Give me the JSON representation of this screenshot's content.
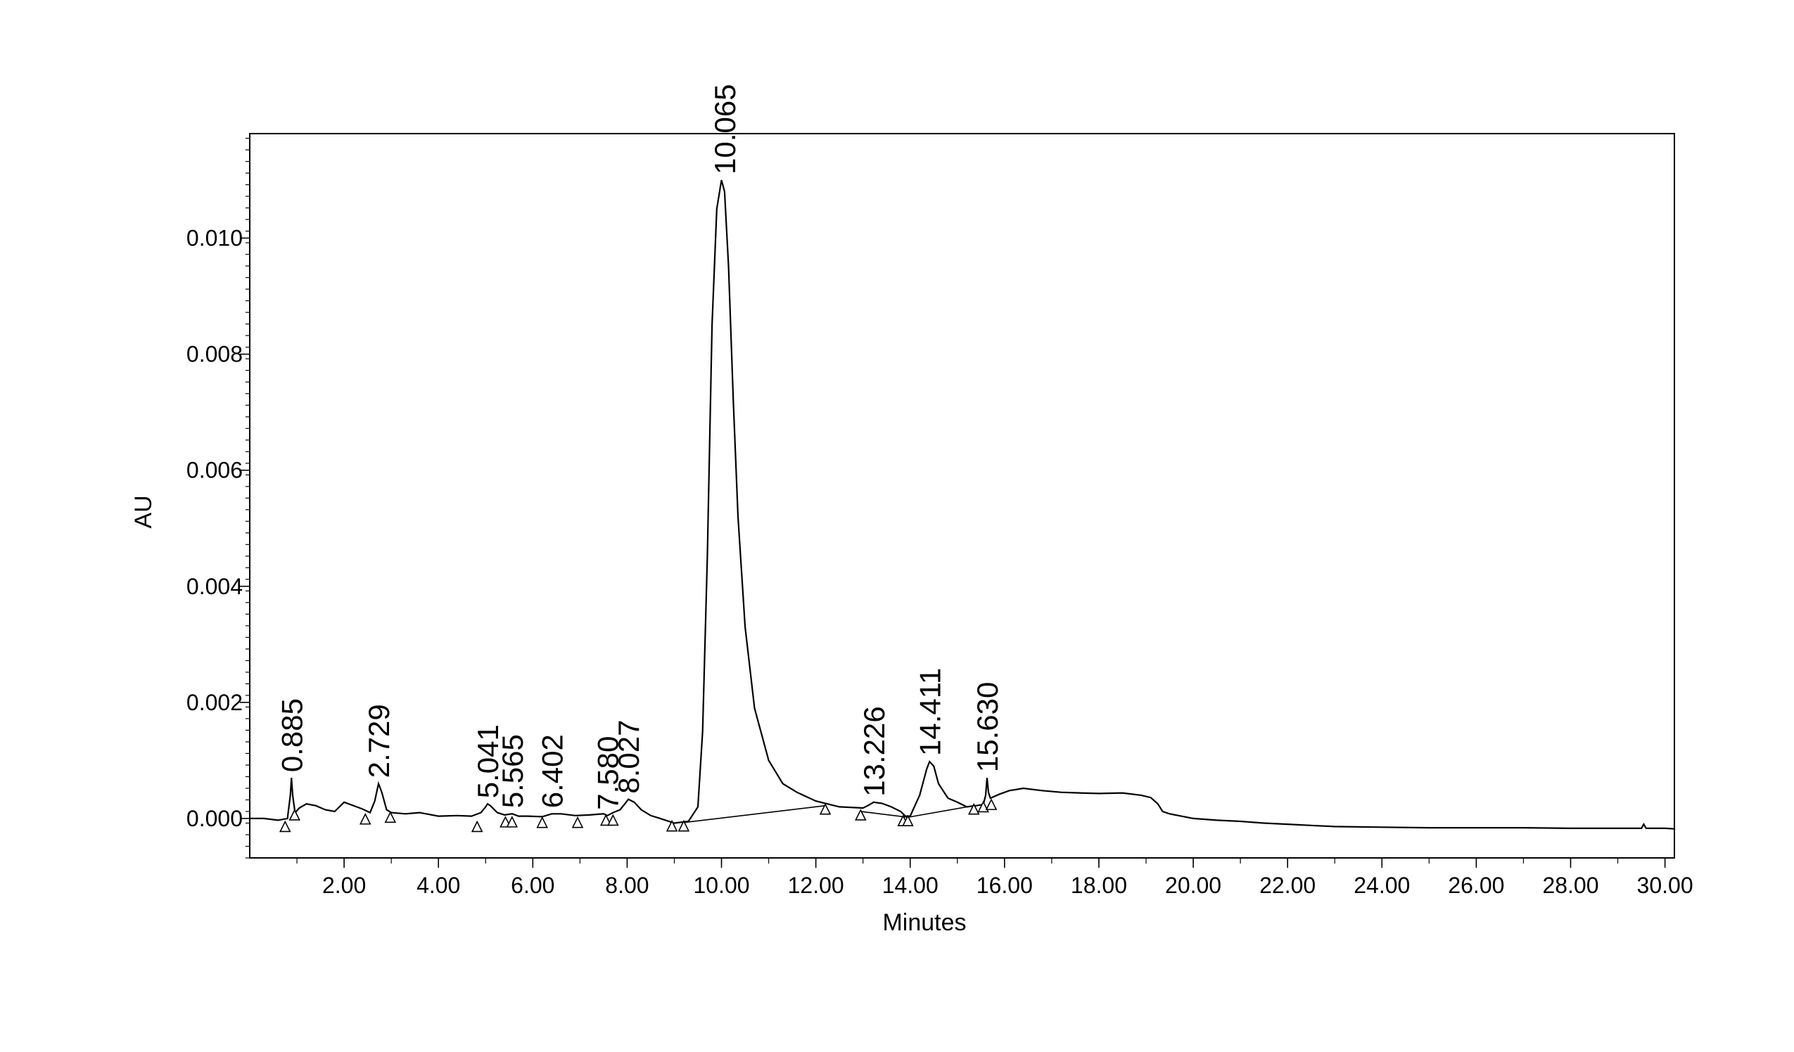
{
  "chart_data": {
    "type": "line",
    "xlabel": "Minutes",
    "ylabel": "AU",
    "xlim": [
      0.0,
      30.2
    ],
    "ylim": [
      -0.00068,
      0.0118
    ],
    "x_ticks": [
      2,
      4,
      6,
      8,
      10,
      12,
      14,
      16,
      18,
      20,
      22,
      24,
      26,
      28,
      30
    ],
    "x_tick_labels": [
      "2.00",
      "4.00",
      "6.00",
      "8.00",
      "10.00",
      "12.00",
      "14.00",
      "16.00",
      "18.00",
      "20.00",
      "22.00",
      "24.00",
      "26.00",
      "28.00",
      "30.00"
    ],
    "y_ticks": [
      0.0,
      0.002,
      0.004,
      0.006,
      0.008,
      0.01
    ],
    "y_tick_labels": [
      "0.000",
      "0.002",
      "0.004",
      "0.006",
      "0.008",
      "0.010"
    ],
    "series": [
      {
        "x": [
          0.0,
          0.3,
          0.6,
          0.8,
          0.86,
          0.885,
          0.91,
          0.96,
          1.05,
          1.2,
          1.4,
          1.6,
          1.8,
          2.0,
          2.2,
          2.4,
          2.55,
          2.65,
          2.729,
          2.8,
          2.9,
          3.0,
          3.3,
          3.6,
          4.0,
          4.4,
          4.7,
          4.9,
          5.0,
          5.041,
          5.1,
          5.25,
          5.4,
          5.565,
          5.7,
          5.9,
          6.2,
          6.402,
          6.6,
          6.9,
          7.2,
          7.5,
          7.58,
          7.7,
          7.85,
          7.95,
          8.027,
          8.15,
          8.3,
          8.5,
          8.7,
          9.0,
          9.3,
          9.5,
          9.6,
          9.7,
          9.8,
          9.9,
          10.0,
          10.065,
          10.15,
          10.25,
          10.35,
          10.5,
          10.7,
          11.0,
          11.3,
          11.6,
          12.0,
          12.5,
          13.0,
          13.1,
          13.226,
          13.4,
          13.6,
          13.8,
          13.9,
          14.0,
          14.2,
          14.35,
          14.411,
          14.5,
          14.6,
          14.8,
          15.0,
          15.2,
          15.4,
          15.55,
          15.6,
          15.63,
          15.66,
          15.7,
          15.9,
          16.1,
          16.4,
          16.8,
          17.2,
          17.6,
          18.0,
          18.5,
          18.9,
          19.1,
          19.25,
          19.35,
          19.5,
          20.0,
          20.5,
          21.0,
          21.5,
          22.0,
          22.5,
          23.0,
          24.0,
          25.0,
          26.0,
          27.0,
          28.0,
          29.0,
          29.5,
          29.55,
          29.6,
          30.0,
          30.2
        ],
        "y": [
          0.0,
          0.0,
          -3e-05,
          0.0,
          0.0004,
          0.0007,
          0.0004,
          0.0001,
          0.00018,
          0.00025,
          0.00022,
          0.00015,
          0.00012,
          0.00028,
          0.00022,
          0.00016,
          0.0001,
          0.0003,
          0.0006,
          0.00045,
          0.00015,
          0.0001,
          8e-05,
          0.0001,
          4e-05,
          5e-05,
          4e-05,
          0.0001,
          0.0002,
          0.00025,
          0.00022,
          0.0001,
          6e-05,
          8e-05,
          4e-05,
          4e-05,
          3e-05,
          8e-05,
          8e-05,
          5e-05,
          6e-05,
          8e-05,
          5e-05,
          0.0001,
          0.00015,
          0.00025,
          0.00033,
          0.00028,
          0.00015,
          5e-05,
          0.0,
          -8e-05,
          -5e-05,
          0.0002,
          0.0015,
          0.0045,
          0.0085,
          0.0105,
          0.011,
          0.0108,
          0.0095,
          0.0072,
          0.0052,
          0.0033,
          0.0019,
          0.001,
          0.0006,
          0.00045,
          0.0003,
          0.0002,
          0.00018,
          0.00022,
          0.00028,
          0.00026,
          0.0002,
          0.00012,
          4e-05,
          4e-05,
          0.0004,
          0.00085,
          0.00098,
          0.0009,
          0.0006,
          0.00035,
          0.00028,
          0.0002,
          0.00022,
          0.00024,
          0.0004,
          0.0007,
          0.00045,
          0.00035,
          0.00042,
          0.00048,
          0.00052,
          0.00048,
          0.00045,
          0.00044,
          0.00043,
          0.00044,
          0.0004,
          0.00036,
          0.00025,
          0.00012,
          8e-05,
          0.0,
          -3e-05,
          -5e-05,
          -8e-05,
          -0.0001,
          -0.00012,
          -0.00014,
          -0.00015,
          -0.00016,
          -0.00016,
          -0.00016,
          -0.00017,
          -0.00017,
          -0.00017,
          -0.0001,
          -0.00017,
          -0.00017,
          -0.00018
        ]
      }
    ],
    "peak_labels": [
      {
        "rt": 0.885,
        "text": "0.885",
        "y": 0.0007
      },
      {
        "rt": 2.729,
        "text": "2.729",
        "y": 0.0006
      },
      {
        "rt": 5.041,
        "text": "5.041",
        "y": 0.00025
      },
      {
        "rt": 5.565,
        "text": "5.565",
        "y": 8e-05
      },
      {
        "rt": 6.402,
        "text": "6.402",
        "y": 8e-05
      },
      {
        "rt": 7.58,
        "text": "7.580",
        "y": 5e-05
      },
      {
        "rt": 8.027,
        "text": "8.027",
        "y": 0.00033
      },
      {
        "rt": 10.065,
        "text": "10.065",
        "y": 0.011
      },
      {
        "rt": 13.226,
        "text": "13.226",
        "y": 0.00028
      },
      {
        "rt": 14.411,
        "text": "14.411",
        "y": 0.00098
      },
      {
        "rt": 15.63,
        "text": "15.630",
        "y": 0.0007
      }
    ],
    "integration_markers": [
      {
        "x": 0.75,
        "y": -8e-05
      },
      {
        "x": 0.95,
        "y": 0.00012
      },
      {
        "x": 2.45,
        "y": 5e-05
      },
      {
        "x": 2.98,
        "y": 8e-05
      },
      {
        "x": 4.82,
        "y": -8e-05
      },
      {
        "x": 5.42,
        "y": 0.0
      },
      {
        "x": 5.56,
        "y": 0.0
      },
      {
        "x": 6.2,
        "y": -1e-05
      },
      {
        "x": 6.95,
        "y": -1e-05
      },
      {
        "x": 7.55,
        "y": 3e-05
      },
      {
        "x": 7.7,
        "y": 3e-05
      },
      {
        "x": 8.95,
        "y": -7e-05
      },
      {
        "x": 9.2,
        "y": -7e-05
      },
      {
        "x": 12.2,
        "y": 0.00022
      },
      {
        "x": 12.95,
        "y": 0.00012
      },
      {
        "x": 13.85,
        "y": 2e-05
      },
      {
        "x": 13.95,
        "y": 2e-05
      },
      {
        "x": 15.35,
        "y": 0.00022
      },
      {
        "x": 15.55,
        "y": 0.00026
      },
      {
        "x": 15.72,
        "y": 0.0003
      }
    ],
    "baselines": [
      {
        "from": [
          9.2,
          -7e-05
        ],
        "to": [
          12.2,
          0.00022
        ]
      },
      {
        "from": [
          12.95,
          0.00012
        ],
        "to": [
          13.95,
          2e-05
        ]
      },
      {
        "from": [
          13.95,
          2e-05
        ],
        "to": [
          15.35,
          0.00022
        ]
      }
    ],
    "grid": false,
    "legend": "none",
    "color": "#000000"
  }
}
